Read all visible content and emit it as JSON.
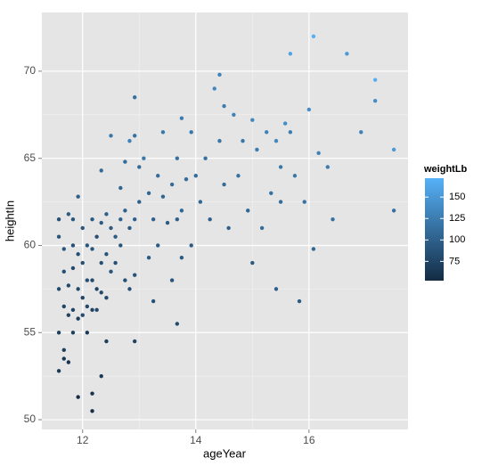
{
  "chart_data": {
    "type": "scatter",
    "x_label": "ageYear",
    "y_label": "heightIn",
    "legend_title": "weightLb",
    "xlim": [
      11.28,
      17.75
    ],
    "ylim": [
      49.44,
      73.37
    ],
    "xticks": [
      12,
      14,
      16
    ],
    "yticks": [
      50,
      55,
      60,
      65,
      70
    ],
    "grid": true,
    "color_scale": {
      "low": "#132B43",
      "high": "#56B1F7",
      "limits": [
        52.5,
        172
      ],
      "ticks": [
        75,
        100,
        125,
        150
      ]
    },
    "x": [
      11.58,
      11.58,
      11.58,
      11.58,
      11.58,
      11.67,
      11.67,
      11.67,
      11.67,
      11.67,
      11.75,
      11.75,
      11.75,
      11.75,
      11.83,
      11.83,
      11.83,
      11.83,
      11.83,
      11.92,
      11.92,
      11.92,
      11.92,
      11.92,
      12,
      12,
      12,
      12,
      12.08,
      12.08,
      12.08,
      12.08,
      12.17,
      12.17,
      12.17,
      12.17,
      12.17,
      12.17,
      12.25,
      12.25,
      12.25,
      12.33,
      12.33,
      12.33,
      12.33,
      12.33,
      12.42,
      12.42,
      12.42,
      12.42,
      12.5,
      12.5,
      12.5,
      12.58,
      12.58,
      12.67,
      12.67,
      12.67,
      12.75,
      12.75,
      12.75,
      12.83,
      12.83,
      12.83,
      12.92,
      12.92,
      12.92,
      12.92,
      12.92,
      13,
      13,
      13.08,
      13.17,
      13.17,
      13.25,
      13.25,
      13.33,
      13.33,
      13.42,
      13.42,
      13.5,
      13.58,
      13.58,
      13.67,
      13.67,
      13.67,
      13.75,
      13.75,
      13.75,
      13.83,
      13.92,
      13.92,
      14,
      14.08,
      14.17,
      14.25,
      14.33,
      14.42,
      14.42,
      14.5,
      14.5,
      14.58,
      14.67,
      14.75,
      14.83,
      14.92,
      15,
      15,
      15.08,
      15.17,
      15.25,
      15.33,
      15.42,
      15.42,
      15.5,
      15.5,
      15.58,
      15.67,
      15.67,
      15.75,
      15.83,
      15.92,
      16,
      16.08,
      16.08,
      16.17,
      16.33,
      16.42,
      16.67,
      16.92,
      17.17,
      17.17,
      17.5,
      17.5
    ],
    "values": [
      61.5,
      60.5,
      57.5,
      55,
      52.8,
      59.8,
      58.5,
      56.5,
      54,
      53.5,
      61.8,
      57.7,
      56,
      53.3,
      61.5,
      60,
      58.7,
      56.3,
      55,
      62.8,
      59.5,
      57.5,
      55.8,
      51.3,
      61,
      59,
      57,
      56,
      60,
      58,
      56.5,
      55,
      61.5,
      59.8,
      58,
      56.3,
      51.5,
      50.5,
      60.5,
      57.5,
      56.3,
      64.3,
      61.3,
      59,
      57.3,
      52.5,
      61.8,
      59.5,
      57,
      54.5,
      66.3,
      61,
      58.5,
      60.5,
      59,
      63.3,
      61.5,
      60,
      64.8,
      62,
      58,
      66,
      61,
      57.5,
      66.3,
      61.5,
      58.3,
      54.5,
      68.5,
      64.5,
      62.5,
      65,
      63,
      59.3,
      61.5,
      56.8,
      64,
      60,
      66.5,
      62.8,
      61.3,
      63.5,
      58,
      65,
      61.5,
      55.5,
      67.3,
      62,
      59.3,
      63.8,
      66.5,
      60,
      64,
      62.5,
      65,
      61.5,
      69,
      69.8,
      66,
      68,
      63.5,
      61,
      67.5,
      64,
      66,
      62,
      67.2,
      59,
      65.5,
      61,
      66.5,
      63,
      66,
      57.5,
      64.5,
      62.5,
      67,
      71,
      66.5,
      64,
      56.8,
      62.5,
      67.8,
      72,
      59.8,
      65.3,
      64.5,
      61.5,
      71,
      66.5,
      69.5,
      68.3,
      65.5,
      62
    ],
    "weights": [
      85,
      90,
      80,
      70,
      65,
      90,
      85,
      75,
      70,
      65,
      95,
      80,
      75,
      60,
      90,
      85,
      80,
      75,
      70,
      100,
      85,
      80,
      70,
      55,
      90,
      85,
      75,
      80,
      90,
      85,
      80,
      65,
      95,
      90,
      80,
      75,
      60,
      55,
      85,
      75,
      80,
      110,
      95,
      85,
      80,
      65,
      100,
      90,
      80,
      70,
      120,
      95,
      90,
      95,
      85,
      105,
      100,
      90,
      110,
      100,
      85,
      130,
      95,
      85,
      115,
      100,
      90,
      75,
      115,
      110,
      100,
      120,
      105,
      95,
      100,
      85,
      110,
      95,
      120,
      105,
      95,
      110,
      90,
      115,
      100,
      80,
      125,
      105,
      95,
      110,
      120,
      95,
      110,
      105,
      115,
      100,
      135,
      130,
      120,
      125,
      110,
      100,
      130,
      115,
      120,
      105,
      135,
      95,
      125,
      110,
      130,
      115,
      135,
      100,
      120,
      110,
      140,
      160,
      125,
      120,
      95,
      115,
      140,
      170,
      105,
      130,
      125,
      115,
      150,
      130,
      170,
      140,
      150,
      115
    ]
  }
}
